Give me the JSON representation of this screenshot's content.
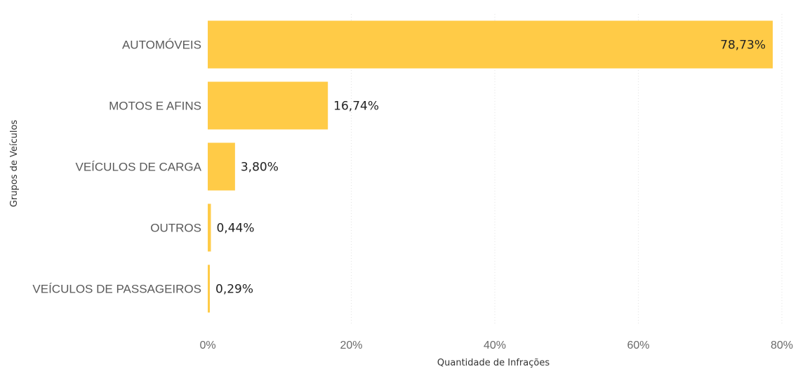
{
  "chart_data": {
    "type": "bar",
    "orientation": "horizontal",
    "categories": [
      "AUTOMÓVEIS",
      "MOTOS E AFINS",
      "VEÍCULOS DE CARGA",
      "OUTROS",
      "VEÍCULOS DE PASSAGEIROS"
    ],
    "values": [
      78.73,
      16.74,
      3.8,
      0.44,
      0.29
    ],
    "value_labels": [
      "78,73%",
      "16,74%",
      "3,80%",
      "0,44%",
      "0,29%"
    ],
    "xlabel": "Quantidade de Infrações",
    "ylabel": "Grupos de Veículos",
    "xlim": [
      0,
      80
    ],
    "xticks": [
      0,
      20,
      40,
      60,
      80
    ],
    "xtick_labels": [
      "0%",
      "20%",
      "40%",
      "60%",
      "80%"
    ],
    "grid": true,
    "colors": {
      "bar": "#FFCB47"
    }
  }
}
